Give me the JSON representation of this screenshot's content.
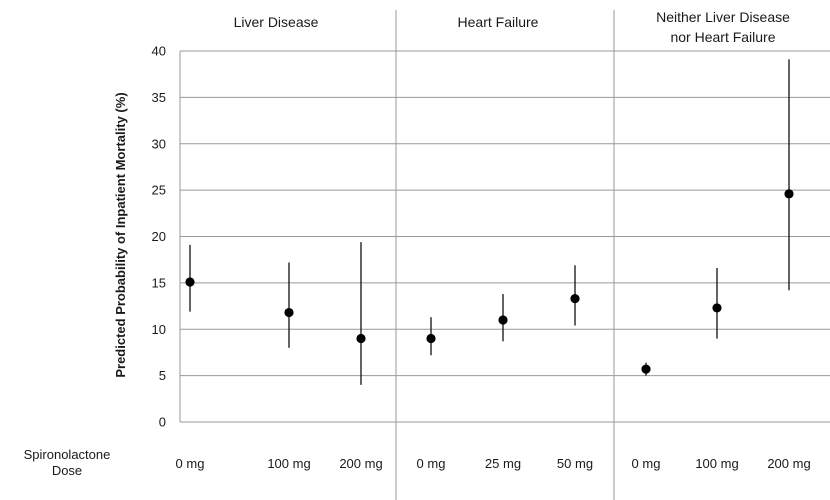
{
  "chart_data": {
    "type": "scatter",
    "ylabel": "Predicted Probability of Inpatient Mortality (%)",
    "ylim": [
      0,
      40
    ],
    "yticks": [
      0,
      5,
      10,
      15,
      20,
      25,
      30,
      35,
      40
    ],
    "grid": true,
    "row_label": [
      "Spironolactone",
      "Dose"
    ],
    "panels": [
      {
        "title": [
          "Liver Disease"
        ],
        "categories": [
          "0 mg",
          "100 mg",
          "200 mg"
        ],
        "points": [
          {
            "x": "0 mg",
            "y": 15.1,
            "lower": 11.9,
            "upper": 19.1
          },
          {
            "x": "100 mg",
            "y": 11.8,
            "lower": 8.0,
            "upper": 17.2
          },
          {
            "x": "200 mg",
            "y": 9.0,
            "lower": 4.0,
            "upper": 19.4
          }
        ]
      },
      {
        "title": [
          "Heart Failure"
        ],
        "categories": [
          "0 mg",
          "25 mg",
          "50 mg"
        ],
        "points": [
          {
            "x": "0 mg",
            "y": 9.0,
            "lower": 7.2,
            "upper": 11.3
          },
          {
            "x": "25 mg",
            "y": 11.0,
            "lower": 8.7,
            "upper": 13.8
          },
          {
            "x": "50 mg",
            "y": 13.3,
            "lower": 10.4,
            "upper": 16.9
          }
        ]
      },
      {
        "title": [
          "Neither Liver Disease",
          "nor Heart Failure"
        ],
        "categories": [
          "0 mg",
          "100 mg",
          "200 mg"
        ],
        "points": [
          {
            "x": "0 mg",
            "y": 5.7,
            "lower": 5.0,
            "upper": 6.4
          },
          {
            "x": "100 mg",
            "y": 12.3,
            "lower": 9.0,
            "upper": 16.6
          },
          {
            "x": "200 mg",
            "y": 24.6,
            "lower": 14.2,
            "upper": 39.1
          }
        ]
      }
    ]
  }
}
